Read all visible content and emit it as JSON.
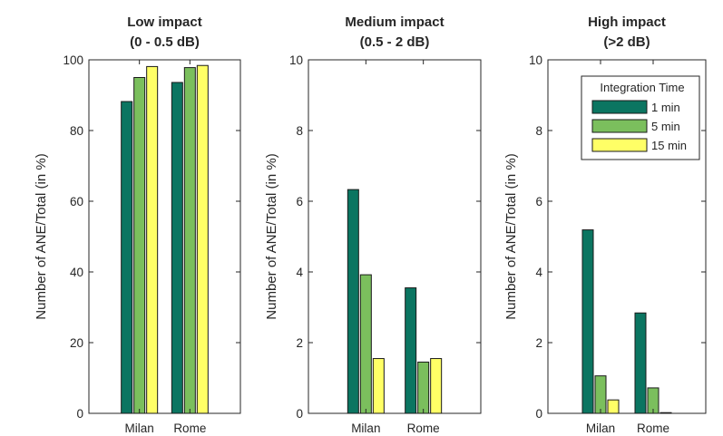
{
  "chart_data": [
    {
      "type": "bar",
      "title": [
        "Low impact",
        "(0 - 0.5 dB)"
      ],
      "ylabel": "Number of ANE/Total (in %)",
      "xlabel": "",
      "categories": [
        "Milan",
        "Rome"
      ],
      "ylim": [
        0,
        100
      ],
      "yticks": [
        0,
        20,
        40,
        60,
        80,
        100
      ],
      "series": [
        {
          "name": "1 min",
          "values": [
            88.2,
            93.6
          ]
        },
        {
          "name": "5 min",
          "values": [
            95.0,
            97.8
          ]
        },
        {
          "name": "15 min",
          "values": [
            98.1,
            98.4
          ]
        }
      ]
    },
    {
      "type": "bar",
      "title": [
        "Medium impact",
        "(0.5 - 2 dB)"
      ],
      "ylabel": "Number of ANE/Total (in %)",
      "xlabel": "",
      "categories": [
        "Milan",
        "Rome"
      ],
      "ylim": [
        0,
        10
      ],
      "yticks": [
        0,
        2,
        4,
        6,
        8,
        10
      ],
      "series": [
        {
          "name": "1 min",
          "values": [
            6.33,
            3.55
          ]
        },
        {
          "name": "5 min",
          "values": [
            3.92,
            1.45
          ]
        },
        {
          "name": "15 min",
          "values": [
            1.55,
            1.55
          ]
        }
      ]
    },
    {
      "type": "bar",
      "title": [
        "High impact",
        "(>2 dB)"
      ],
      "ylabel": "Number of ANE/Total (in %)",
      "xlabel": "",
      "categories": [
        "Milan",
        "Rome"
      ],
      "ylim": [
        0,
        10
      ],
      "yticks": [
        0,
        2,
        4,
        6,
        8,
        10
      ],
      "series": [
        {
          "name": "1 min",
          "values": [
            5.19,
            2.84
          ]
        },
        {
          "name": "5 min",
          "values": [
            1.06,
            0.72
          ]
        },
        {
          "name": "15 min",
          "values": [
            0.38,
            0.02
          ]
        }
      ],
      "legend": {
        "title": "Integration Time",
        "entries": [
          "1 min",
          "5 min",
          "15 min"
        ],
        "placement": "top-right"
      }
    }
  ],
  "colors": {
    "series": [
      "#0b7561",
      "#7bbf5d",
      "#ffff66"
    ],
    "edge": "#1a1a1a",
    "axis": "#262626"
  }
}
